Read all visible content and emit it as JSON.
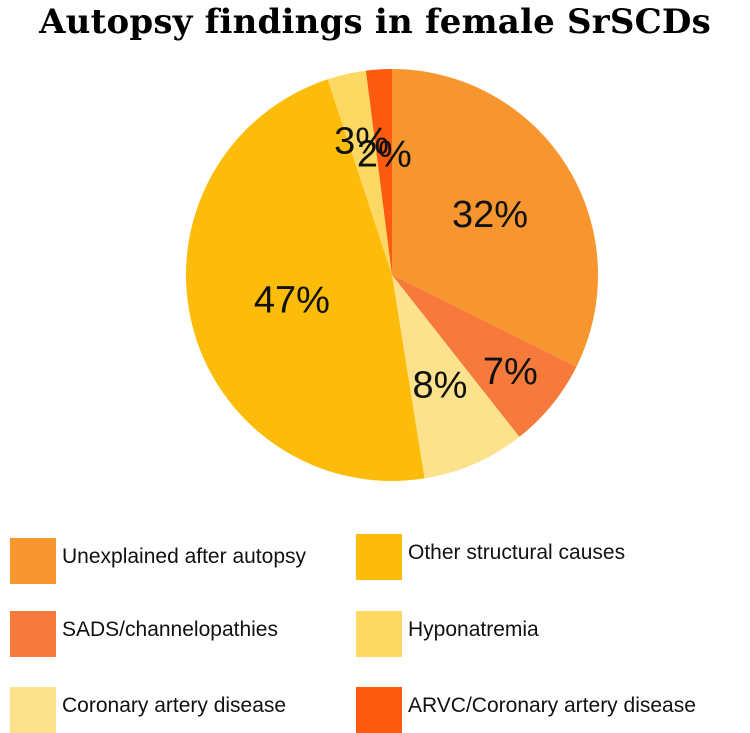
{
  "chart_data": {
    "type": "pie",
    "title": "Autopsy findings in female SrSCDs",
    "slices": [
      {
        "name": "Unexplained after autopsy",
        "value": 32,
        "label": "32%",
        "color": "#F7962F"
      },
      {
        "name": "SADS/channelopathies",
        "value": 7,
        "label": "7%",
        "color": "#F57A3C"
      },
      {
        "name": "Coronary artery disease",
        "value": 8,
        "label": "8%",
        "color": "#FCE28C"
      },
      {
        "name": "Other structural causes",
        "value": 47,
        "label": "47%",
        "color": "#FCBC09"
      },
      {
        "name": "Hyponatremia",
        "value": 3,
        "label": "3%",
        "color": "#FDD964"
      },
      {
        "name": "ARVC/Coronary artery disease",
        "value": 2,
        "label": "2%",
        "color": "#FC5A0E"
      }
    ],
    "legend": {
      "placement": "bottom",
      "items": [
        {
          "label": "Unexplained after autopsy",
          "color": "#F7962F"
        },
        {
          "label": "Other structural causes",
          "color": "#FCBC09"
        },
        {
          "label": "SADS/channelopathies",
          "color": "#F57A3C"
        },
        {
          "label": "Hyponatremia",
          "color": "#FDD964"
        },
        {
          "label": "Coronary artery disease",
          "color": "#FCE28C"
        },
        {
          "label": "ARVC/Coronary artery disease",
          "color": "#FC5A0E"
        }
      ]
    }
  }
}
